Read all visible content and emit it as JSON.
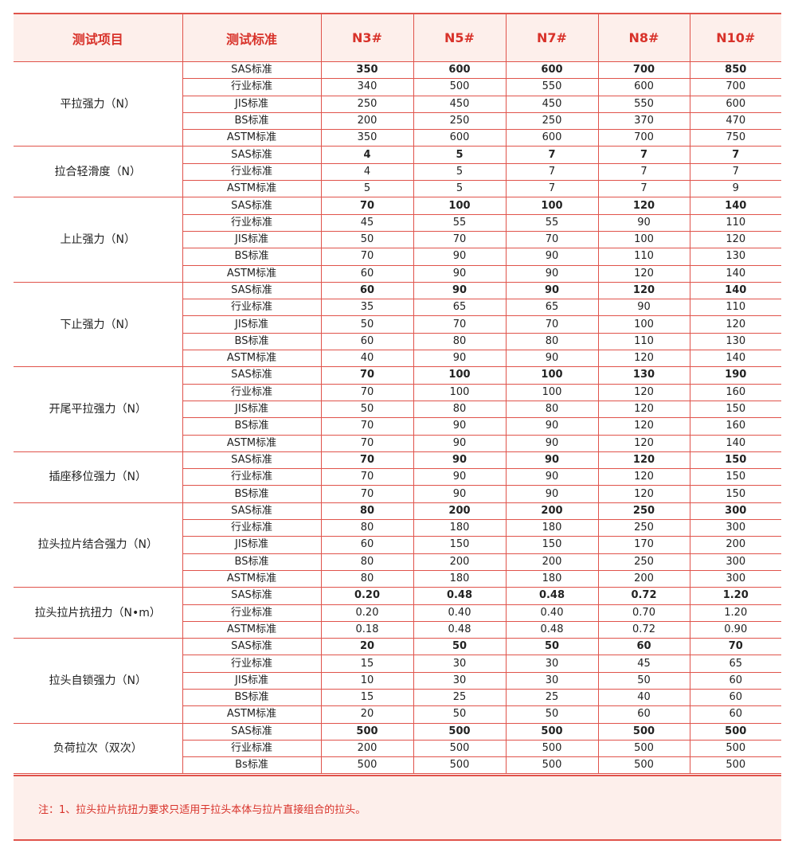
{
  "header": [
    "测试项目",
    "测试标准",
    "N3#",
    "N5#",
    "N7#",
    "N8#",
    "N10#"
  ],
  "groups": [
    {
      "item": "平拉强力（N）",
      "rows": [
        [
          "SAS标准",
          "350",
          "600",
          "600",
          "700",
          "850"
        ],
        [
          "行业标准",
          "340",
          "500",
          "550",
          "600",
          "700"
        ],
        [
          "JIS标准",
          "250",
          "450",
          "450",
          "550",
          "600"
        ],
        [
          "BS标准",
          "200",
          "250",
          "250",
          "370",
          "470"
        ],
        [
          "ASTM标准",
          "350",
          "600",
          "600",
          "700",
          "750"
        ]
      ]
    },
    {
      "item": "拉合轻滑度（N）",
      "rows": [
        [
          "SAS标准",
          "4",
          "5",
          "7",
          "7",
          "7"
        ],
        [
          "行业标准",
          "4",
          "5",
          "7",
          "7",
          "7"
        ],
        [
          "ASTM标准",
          "5",
          "5",
          "7",
          "7",
          "9"
        ]
      ]
    },
    {
      "item": "上止强力（N）",
      "rows": [
        [
          "SAS标准",
          "70",
          "100",
          "100",
          "120",
          "140"
        ],
        [
          "行业标准",
          "45",
          "55",
          "55",
          "90",
          "110"
        ],
        [
          "JIS标准",
          "50",
          "70",
          "70",
          "100",
          "120"
        ],
        [
          "BS标准",
          "70",
          "90",
          "90",
          "110",
          "130"
        ],
        [
          "ASTM标准",
          "60",
          "90",
          "90",
          "120",
          "140"
        ]
      ]
    },
    {
      "item": "下止强力（N）",
      "rows": [
        [
          "SAS标准",
          "60",
          "90",
          "90",
          "120",
          "140"
        ],
        [
          "行业标准",
          "35",
          "65",
          "65",
          "90",
          "110"
        ],
        [
          "JIS标准",
          "50",
          "70",
          "70",
          "100",
          "120"
        ],
        [
          "BS标准",
          "60",
          "80",
          "80",
          "110",
          "130"
        ],
        [
          "ASTM标准",
          "40",
          "90",
          "90",
          "120",
          "140"
        ]
      ]
    },
    {
      "item": "开尾平拉强力（N）",
      "rows": [
        [
          "SAS标准",
          "70",
          "100",
          "100",
          "130",
          "190"
        ],
        [
          "行业标准",
          "70",
          "100",
          "100",
          "120",
          "160"
        ],
        [
          "JIS标准",
          "50",
          "80",
          "80",
          "120",
          "150"
        ],
        [
          "BS标准",
          "70",
          "90",
          "90",
          "120",
          "160"
        ],
        [
          "ASTM标准",
          "70",
          "90",
          "90",
          "120",
          "140"
        ]
      ]
    },
    {
      "item": "插座移位强力（N）",
      "rows": [
        [
          "SAS标准",
          "70",
          "90",
          "90",
          "120",
          "150"
        ],
        [
          "行业标准",
          "70",
          "90",
          "90",
          "120",
          "150"
        ],
        [
          "BS标准",
          "70",
          "90",
          "90",
          "120",
          "150"
        ]
      ]
    },
    {
      "item": "拉头拉片结合强力（N）",
      "rows": [
        [
          "SAS标准",
          "80",
          "200",
          "200",
          "250",
          "300"
        ],
        [
          "行业标准",
          "80",
          "180",
          "180",
          "250",
          "300"
        ],
        [
          "JIS标准",
          "60",
          "150",
          "150",
          "170",
          "200"
        ],
        [
          "BS标准",
          "80",
          "200",
          "200",
          "250",
          "300"
        ],
        [
          "ASTM标准",
          "80",
          "180",
          "180",
          "200",
          "300"
        ]
      ]
    },
    {
      "item": "拉头拉片抗扭力（N•m）",
      "rows": [
        [
          "SAS标准",
          "0.20",
          "0.48",
          "0.48",
          "0.72",
          "1.20"
        ],
        [
          "行业标准",
          "0.20",
          "0.40",
          "0.40",
          "0.70",
          "1.20"
        ],
        [
          "ASTM标准",
          "0.18",
          "0.48",
          "0.48",
          "0.72",
          "0.90"
        ]
      ]
    },
    {
      "item": "拉头自锁强力（N）",
      "rows": [
        [
          "SAS标准",
          "20",
          "50",
          "50",
          "60",
          "70"
        ],
        [
          "行业标准",
          "15",
          "30",
          "30",
          "45",
          "65"
        ],
        [
          "JIS标准",
          "10",
          "30",
          "30",
          "50",
          "60"
        ],
        [
          "BS标准",
          "15",
          "25",
          "25",
          "40",
          "60"
        ],
        [
          "ASTM标准",
          "20",
          "50",
          "50",
          "60",
          "60"
        ]
      ]
    },
    {
      "item": "负荷拉次（双次）",
      "rows": [
        [
          "SAS标准",
          "500",
          "500",
          "500",
          "500",
          "500"
        ],
        [
          "行业标准",
          "200",
          "500",
          "500",
          "500",
          "500"
        ],
        [
          "Bs标准",
          "500",
          "500",
          "500",
          "500",
          "500"
        ]
      ]
    }
  ],
  "note": "注：1、拉头拉片抗扭力要求只适用于拉头本体与拉片直接组合的拉头。",
  "colors": {
    "accent": "#d8322a",
    "border": "#e0534b",
    "header_bg": "#fdefeb"
  }
}
